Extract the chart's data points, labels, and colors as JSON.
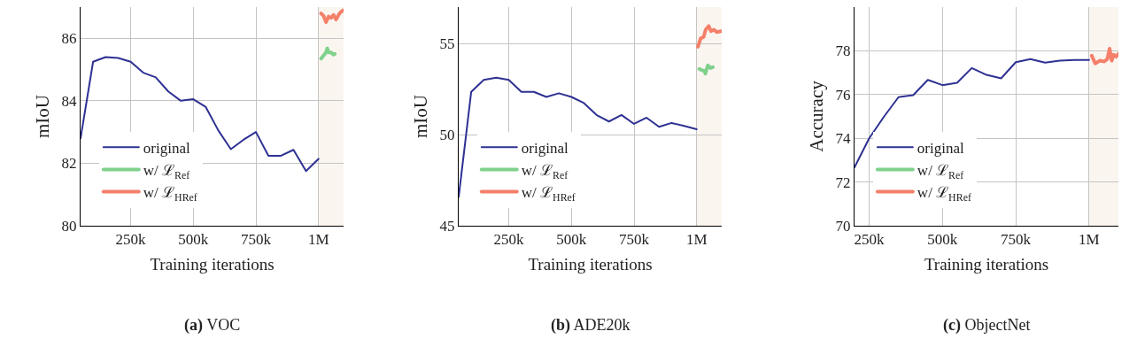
{
  "chart_data": [
    {
      "type": "line",
      "title": "(a) VOC",
      "xlabel": "Training iterations",
      "ylabel": "mIoU",
      "xlim": [
        50000,
        1100000
      ],
      "ylim": [
        80,
        87
      ],
      "xticks": [
        {
          "value": 250000,
          "label": "250k"
        },
        {
          "value": 500000,
          "label": "500k"
        },
        {
          "value": 750000,
          "label": "750k"
        },
        {
          "value": 1000000,
          "label": "1M"
        }
      ],
      "yticks": [
        80,
        82,
        84,
        86
      ],
      "grid": true,
      "legend": "bottom left",
      "bands": [
        {
          "axis": "x",
          "from": 1000000,
          "to": 1100000,
          "color": "#fbf5f0"
        }
      ],
      "series": [
        {
          "name": "original",
          "color": "#2e3192",
          "x": [
            50000,
            100000,
            150000,
            200000,
            250000,
            300000,
            350000,
            400000,
            450000,
            500000,
            550000,
            600000,
            650000,
            700000,
            750000,
            800000,
            850000,
            900000,
            950000,
            1000000
          ],
          "values": [
            82.8,
            85.25,
            85.4,
            85.37,
            85.25,
            84.9,
            84.75,
            84.3,
            84.0,
            84.05,
            83.8,
            83.05,
            82.45,
            82.75,
            83.0,
            82.24,
            82.24,
            82.43,
            81.75,
            82.14
          ]
        },
        {
          "name": "w/ ℒ$_{Ref}$",
          "color": "#7fd18b",
          "x": [
            1010000,
            1020000,
            1030000,
            1035000,
            1040000,
            1050000,
            1060000,
            1065000
          ],
          "values": [
            85.35,
            85.45,
            85.55,
            85.68,
            85.55,
            85.55,
            85.48,
            85.5
          ]
        },
        {
          "name": "w/ ℒ$_{HRef}$",
          "color": "#f4806a",
          "x": [
            1010000,
            1020000,
            1030000,
            1040000,
            1050000,
            1060000,
            1070000,
            1080000,
            1090000,
            1100000
          ],
          "values": [
            86.8,
            86.72,
            86.52,
            86.7,
            86.65,
            86.75,
            86.6,
            86.75,
            86.85,
            86.9
          ]
        }
      ]
    },
    {
      "type": "line",
      "title": "(b) ADE20k",
      "xlabel": "Training iterations",
      "ylabel": "mIoU",
      "xlim": [
        50000,
        1100000
      ],
      "ylim": [
        45,
        57
      ],
      "xticks": [
        {
          "value": 250000,
          "label": "250k"
        },
        {
          "value": 500000,
          "label": "500k"
        },
        {
          "value": 750000,
          "label": "750k"
        },
        {
          "value": 1000000,
          "label": "1M"
        }
      ],
      "yticks": [
        45,
        50,
        55
      ],
      "grid": true,
      "legend": "bottom left",
      "bands": [
        {
          "axis": "x",
          "from": 1000000,
          "to": 1100000,
          "color": "#fbf5f0"
        }
      ],
      "series": [
        {
          "name": "original",
          "color": "#2e3192",
          "x": [
            50000,
            100000,
            150000,
            200000,
            250000,
            300000,
            350000,
            400000,
            450000,
            500000,
            550000,
            600000,
            650000,
            700000,
            750000,
            800000,
            850000,
            900000,
            950000,
            1000000
          ],
          "values": [
            46.58,
            52.35,
            53.0,
            53.13,
            53.0,
            52.35,
            52.35,
            52.07,
            52.27,
            52.07,
            51.73,
            51.08,
            50.72,
            51.08,
            50.59,
            50.93,
            50.43,
            50.64,
            50.48,
            50.3
          ]
        },
        {
          "name": "w/ ℒ$_{Ref}$",
          "color": "#7fd18b",
          "x": [
            1010000,
            1020000,
            1030000,
            1035000,
            1040000,
            1045000,
            1055000,
            1065000
          ],
          "values": [
            53.6,
            53.55,
            53.5,
            53.35,
            53.6,
            53.8,
            53.65,
            53.7
          ]
        },
        {
          "name": "w/ ℒ$_{HRef}$",
          "color": "#f4806a",
          "x": [
            1005000,
            1016000,
            1028000,
            1036000,
            1048000,
            1057000,
            1069000,
            1080000,
            1098000
          ],
          "values": [
            54.82,
            55.28,
            55.36,
            55.76,
            55.96,
            55.68,
            55.76,
            55.63,
            55.68
          ]
        }
      ]
    },
    {
      "type": "line",
      "title": "(c) ObjectNet",
      "xlabel": "Training iterations",
      "ylabel": "Accuracy",
      "xlim": [
        200000,
        1100000
      ],
      "ylim": [
        70,
        80
      ],
      "xticks": [
        {
          "value": 250000,
          "label": "250k"
        },
        {
          "value": 500000,
          "label": "500k"
        },
        {
          "value": 750000,
          "label": "750k"
        },
        {
          "value": 1000000,
          "label": "1M"
        }
      ],
      "yticks": [
        70,
        72,
        74,
        76,
        78
      ],
      "grid": true,
      "legend": "bottom left",
      "bands": [
        {
          "axis": "x",
          "from": 1000000,
          "to": 1100000,
          "color": "#fbf5f0"
        }
      ],
      "series": [
        {
          "name": "original",
          "color": "#2e3192",
          "x": [
            200000,
            250000,
            300000,
            350000,
            400000,
            450000,
            500000,
            550000,
            600000,
            650000,
            700000,
            750000,
            800000,
            850000,
            900000,
            950000,
            1000000
          ],
          "values": [
            72.67,
            74.0,
            74.98,
            75.88,
            75.97,
            76.67,
            76.43,
            76.54,
            77.21,
            76.9,
            76.74,
            77.48,
            77.62,
            77.46,
            77.55,
            77.58,
            77.58
          ]
        },
        {
          "name": "w/ ℒ$_{Ref}$",
          "color": "#7fd18b"
        },
        {
          "name": "w/ ℒ$_{HRef}$",
          "color": "#f4806a",
          "x": [
            1009000,
            1021000,
            1037000,
            1052000,
            1062000,
            1070000,
            1077000,
            1084000,
            1092000,
            1100000
          ],
          "values": [
            77.78,
            77.42,
            77.55,
            77.51,
            77.62,
            78.1,
            77.55,
            77.82,
            77.73,
            77.86
          ]
        }
      ]
    }
  ]
}
